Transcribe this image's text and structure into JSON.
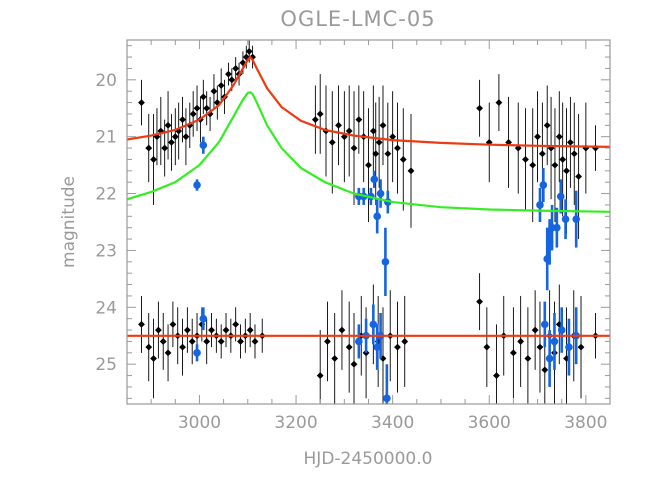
{
  "chart_data": {
    "type": "scatter",
    "title": "OGLE-LMC-05",
    "xlabel": "HJD-2450000.0",
    "ylabel": "magnitude",
    "xlim": [
      2850,
      3850
    ],
    "ylim": [
      25.7,
      19.3
    ],
    "y_inverted": true,
    "xticks": [
      3000,
      3200,
      3400,
      3600,
      3800
    ],
    "yticks": [
      20,
      21,
      22,
      23,
      24,
      25
    ],
    "grid": false,
    "colors": {
      "axes": "#9a9a9a",
      "upper_points": "#000000",
      "ogle_points": "#1565e0",
      "fit_total": "#ee3a10",
      "fit_component": "#33ee22",
      "residual_line": "#ee3a10"
    },
    "series": [
      {
        "name": "",
        "kind": "points",
        "color": "#000000",
        "x": [
          2880,
          2895,
          2905,
          2912,
          2920,
          2928,
          2935,
          2942,
          2950,
          2957,
          2965,
          2972,
          2980,
          2987,
          2995,
          3002,
          3008,
          3015,
          3022,
          3030,
          3037,
          3045,
          3052,
          3060,
          3067,
          3075,
          3082,
          3090,
          3097,
          3103,
          3110,
          3240,
          3250,
          3262,
          3275,
          3288,
          3300,
          3310,
          3320,
          3330,
          3340,
          3350,
          3360,
          3365,
          3372,
          3380,
          3390,
          3400,
          3410,
          3422,
          3438,
          3580,
          3600,
          3620,
          3640,
          3660,
          3675,
          3690,
          3700,
          3710,
          3720,
          3728,
          3736,
          3745,
          3752,
          3760,
          3768,
          3776,
          3785,
          3800,
          3820
        ],
        "y": [
          20.4,
          21.2,
          21.4,
          21.0,
          20.9,
          21.2,
          20.8,
          21.1,
          21.0,
          20.9,
          20.7,
          21.0,
          20.8,
          20.6,
          20.5,
          20.7,
          20.3,
          20.5,
          20.6,
          20.2,
          20.4,
          20.1,
          20.3,
          19.9,
          20.0,
          19.8,
          19.9,
          19.7,
          19.6,
          19.5,
          19.6,
          20.7,
          20.6,
          20.9,
          21.1,
          20.8,
          21.0,
          20.9,
          21.2,
          20.7,
          21.0,
          21.5,
          20.9,
          21.3,
          21.1,
          20.8,
          21.3,
          21.0,
          21.2,
          21.4,
          21.6,
          20.5,
          21.1,
          20.4,
          21.1,
          21.2,
          21.4,
          21.5,
          21.0,
          21.3,
          20.8,
          21.2,
          21.5,
          21.0,
          21.4,
          21.6,
          21.1,
          21.3,
          21.7,
          21.2,
          21.2
        ],
        "yerr": [
          0.4,
          0.6,
          0.8,
          0.5,
          0.6,
          0.5,
          0.6,
          0.5,
          0.5,
          0.5,
          0.4,
          0.5,
          0.4,
          0.4,
          0.4,
          0.4,
          0.3,
          0.3,
          0.3,
          0.3,
          0.3,
          0.3,
          0.3,
          0.2,
          0.2,
          0.2,
          0.2,
          0.2,
          0.2,
          0.2,
          0.2,
          0.6,
          0.7,
          0.8,
          0.9,
          0.7,
          0.8,
          0.8,
          1.0,
          0.6,
          0.8,
          1.0,
          0.8,
          0.9,
          0.8,
          0.7,
          0.9,
          0.8,
          0.8,
          0.9,
          1.0,
          0.5,
          0.7,
          0.5,
          0.8,
          0.8,
          0.9,
          1.0,
          0.8,
          0.9,
          0.7,
          0.9,
          1.0,
          0.8,
          1.0,
          1.1,
          0.8,
          0.9,
          1.1,
          0.8,
          0.4
        ]
      },
      {
        "name": "",
        "kind": "points",
        "color": "#1565e0",
        "x": [
          2995,
          3008,
          3330,
          3340,
          3355,
          3362,
          3368,
          3375,
          3385,
          3390,
          3705,
          3712,
          3720,
          3725,
          3730,
          3740,
          3748,
          3758,
          3780
        ],
        "y": [
          21.85,
          21.15,
          22.05,
          22.05,
          22.05,
          21.75,
          22.4,
          22.0,
          23.2,
          22.15,
          22.2,
          21.85,
          23.15,
          22.85,
          22.6,
          22.6,
          22.05,
          22.45,
          22.45
        ],
        "yerr": [
          0.1,
          0.15,
          0.15,
          0.15,
          0.15,
          0.15,
          0.3,
          0.25,
          0.6,
          0.2,
          0.3,
          0.3,
          0.55,
          0.4,
          0.4,
          0.35,
          0.3,
          0.35,
          0.5
        ]
      },
      {
        "name": "",
        "kind": "curve",
        "color": "#ee3a10",
        "x": [
          2850,
          2900,
          2950,
          3000,
          3040,
          3070,
          3090,
          3100,
          3105,
          3110,
          3120,
          3140,
          3170,
          3210,
          3260,
          3320,
          3400,
          3500,
          3600,
          3700,
          3850
        ],
        "y": [
          21.05,
          20.98,
          20.88,
          20.7,
          20.45,
          20.1,
          19.8,
          19.65,
          19.6,
          19.65,
          19.82,
          20.15,
          20.48,
          20.72,
          20.88,
          20.98,
          21.06,
          21.11,
          21.14,
          21.16,
          21.18
        ]
      },
      {
        "name": "",
        "kind": "curve",
        "color": "#33ee22",
        "x": [
          2850,
          2900,
          2950,
          3000,
          3040,
          3070,
          3090,
          3100,
          3105,
          3110,
          3120,
          3140,
          3170,
          3210,
          3260,
          3320,
          3400,
          3500,
          3600,
          3700,
          3850
        ],
        "y": [
          22.1,
          21.97,
          21.8,
          21.5,
          21.1,
          20.65,
          20.35,
          20.23,
          20.22,
          20.25,
          20.42,
          20.8,
          21.2,
          21.55,
          21.8,
          22.0,
          22.15,
          22.24,
          22.28,
          22.3,
          22.32
        ]
      },
      {
        "name": "",
        "kind": "points",
        "color": "#000000",
        "x": [
          2880,
          2895,
          2905,
          2915,
          2925,
          2935,
          2945,
          2955,
          2965,
          2975,
          2985,
          2995,
          3005,
          3015,
          3025,
          3035,
          3045,
          3055,
          3065,
          3075,
          3085,
          3095,
          3105,
          3115,
          3130,
          3250,
          3265,
          3280,
          3295,
          3310,
          3320,
          3335,
          3345,
          3360,
          3370,
          3380,
          3395,
          3410,
          3425,
          3580,
          3595,
          3615,
          3630,
          3650,
          3665,
          3680,
          3695,
          3705,
          3715,
          3725,
          3735,
          3745,
          3760,
          3775,
          3790,
          3820
        ],
        "y": [
          24.3,
          24.7,
          24.9,
          24.4,
          24.6,
          24.8,
          24.3,
          24.5,
          24.7,
          24.4,
          24.6,
          24.5,
          24.3,
          24.6,
          24.4,
          24.5,
          24.6,
          24.4,
          24.5,
          24.3,
          24.6,
          24.5,
          24.4,
          24.6,
          24.5,
          25.2,
          24.6,
          24.9,
          24.4,
          24.7,
          25.0,
          24.5,
          24.8,
          24.3,
          24.6,
          24.9,
          24.5,
          24.7,
          24.6,
          23.9,
          24.7,
          25.2,
          24.5,
          24.8,
          24.6,
          24.9,
          24.4,
          24.7,
          25.1,
          24.5,
          24.8,
          24.3,
          24.9,
          24.5,
          24.7,
          24.5
        ],
        "yerr": [
          0.5,
          0.6,
          0.7,
          0.5,
          0.5,
          0.5,
          0.4,
          0.5,
          0.5,
          0.4,
          0.4,
          0.4,
          0.3,
          0.4,
          0.3,
          0.3,
          0.3,
          0.3,
          0.3,
          0.3,
          0.3,
          0.3,
          0.3,
          0.3,
          0.3,
          0.8,
          0.7,
          0.8,
          0.7,
          0.8,
          0.9,
          0.7,
          0.8,
          0.7,
          0.8,
          0.9,
          0.8,
          0.8,
          0.8,
          0.5,
          0.7,
          0.9,
          0.7,
          0.8,
          0.8,
          0.9,
          0.7,
          0.8,
          0.9,
          0.8,
          0.9,
          0.7,
          0.9,
          0.8,
          0.9,
          0.4
        ]
      },
      {
        "name": "",
        "kind": "points",
        "color": "#1565e0",
        "x": [
          2995,
          3008,
          3330,
          3345,
          3360,
          3368,
          3375,
          3388,
          3715,
          3725,
          3735,
          3750,
          3765,
          3780
        ],
        "y": [
          24.8,
          24.2,
          24.6,
          24.5,
          24.3,
          24.7,
          24.5,
          25.6,
          24.3,
          24.9,
          24.6,
          24.4,
          24.7,
          24.5
        ],
        "yerr": [
          0.15,
          0.2,
          0.3,
          0.3,
          0.35,
          0.4,
          0.4,
          0.6,
          0.4,
          0.5,
          0.5,
          0.4,
          0.5,
          0.5
        ]
      },
      {
        "name": "",
        "kind": "curve",
        "color": "#ee3a10",
        "x": [
          2850,
          3850
        ],
        "y": [
          24.5,
          24.5
        ]
      }
    ]
  }
}
